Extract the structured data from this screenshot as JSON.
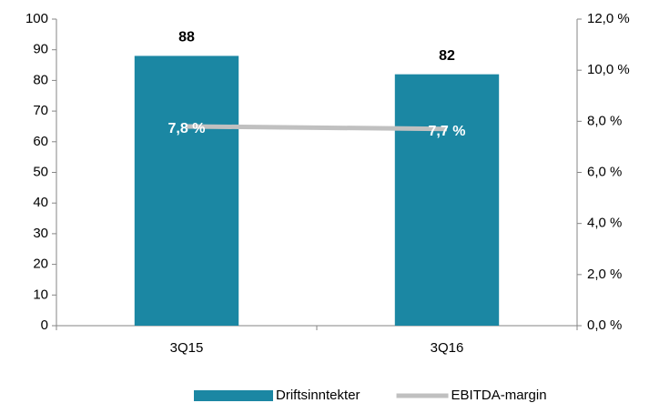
{
  "chart_data": {
    "type": "bar",
    "categories": [
      "3Q15",
      "3Q16"
    ],
    "series": [
      {
        "name": "Driftsinntekter",
        "type": "bar",
        "color": "#1b87a3",
        "values": [
          88,
          82
        ]
      },
      {
        "name": "EBITDA-margin",
        "type": "line",
        "axis": "y2",
        "color": "#c0c0c0",
        "values": [
          7.8,
          7.7
        ],
        "value_labels": [
          "7,8 %",
          "7,7 %"
        ]
      }
    ],
    "ylim": [
      0,
      100
    ],
    "yticks": [
      0,
      10,
      20,
      30,
      40,
      50,
      60,
      70,
      80,
      90,
      100
    ],
    "y2lim": [
      0,
      12
    ],
    "y2ticks": [
      {
        "value": 0,
        "label": "0,0 %"
      },
      {
        "value": 2,
        "label": "2,0 %"
      },
      {
        "value": 4,
        "label": "4,0 %"
      },
      {
        "value": 6,
        "label": "6,0 %"
      },
      {
        "value": 8,
        "label": "8,0 %"
      },
      {
        "value": 10,
        "label": "10,0 %"
      },
      {
        "value": 12,
        "label": "12,0 %"
      }
    ],
    "legend": "bottom",
    "grid": false
  }
}
